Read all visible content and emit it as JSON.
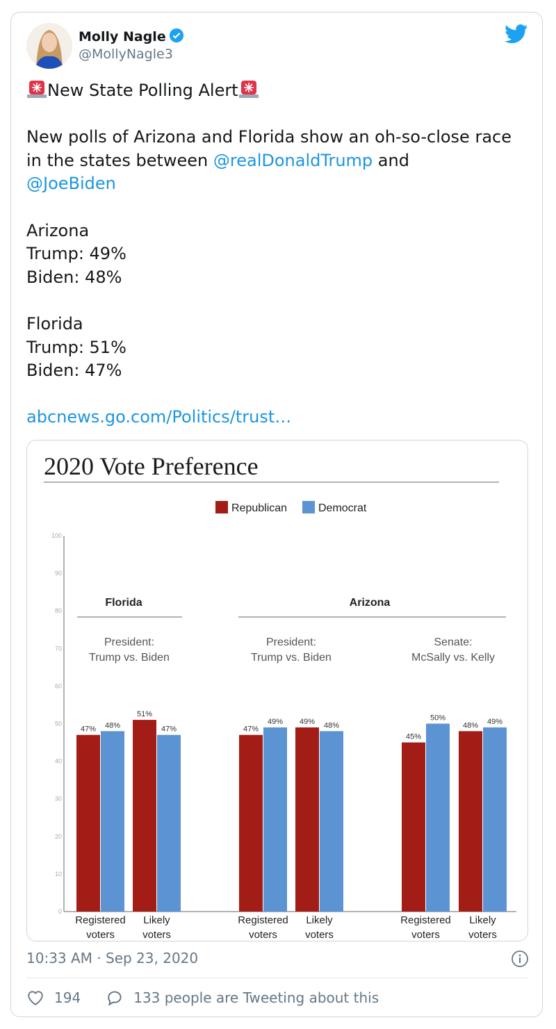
{
  "tweet": {
    "author_name": "Molly Nagle",
    "author_handle": "@MollyNagle3",
    "verified": true,
    "headline": "New State Polling Alert",
    "text_intro": "New polls of Arizona and Florida show an oh-so-close race in the states between ",
    "mention_1": "@realDonaldTrump",
    "text_and": " and",
    "mention_2": "@JoeBiden",
    "results": [
      "Arizona",
      "Trump: 49%",
      "Biden: 48%",
      "",
      "Florida",
      "Trump: 51%",
      "Biden: 47%"
    ],
    "link": "abcnews.go.com/Politics/trust…",
    "timestamp": "10:33 AM · Sep 23, 2020",
    "likes": "194",
    "tweeting_about": "133 people are Tweeting about this",
    "icons": [
      "verified-badge-icon",
      "twitter-bird-icon",
      "siren-icon",
      "info-icon",
      "heart-icon",
      "comment-icon"
    ],
    "colors": {
      "link": "#1b95e0",
      "muted": "#657786",
      "republican": "#a11d16",
      "democrat": "#5b93d3"
    }
  },
  "chart_data": {
    "type": "bar",
    "title": "2020 Vote Preference",
    "legend": [
      "Republican",
      "Democrat"
    ],
    "legend_placement": "top-center",
    "ylim": [
      0,
      100
    ],
    "yticks": [
      0,
      10,
      20,
      30,
      40,
      50,
      60,
      70,
      80,
      90,
      100
    ],
    "groups": [
      {
        "state": "Florida",
        "race": [
          "President:",
          "Trump vs. Biden"
        ]
      },
      {
        "state": "Arizona",
        "race": [
          "President:",
          "Trump vs. Biden"
        ]
      },
      {
        "state": "",
        "race": [
          "Senate:",
          "McSally vs. Kelly"
        ]
      }
    ],
    "categories": [
      [
        "Registered",
        "voters"
      ],
      [
        "Likely",
        "voters"
      ],
      [
        "Registered",
        "voters"
      ],
      [
        "Likely",
        "voters"
      ],
      [
        "Registered",
        "voters"
      ],
      [
        "Likely",
        "voters"
      ]
    ],
    "series": [
      {
        "name": "Republican",
        "values": [
          47,
          51,
          47,
          49,
          45,
          48
        ]
      },
      {
        "name": "Democrat",
        "values": [
          48,
          47,
          49,
          48,
          50,
          49
        ]
      }
    ],
    "value_suffix": "%"
  }
}
